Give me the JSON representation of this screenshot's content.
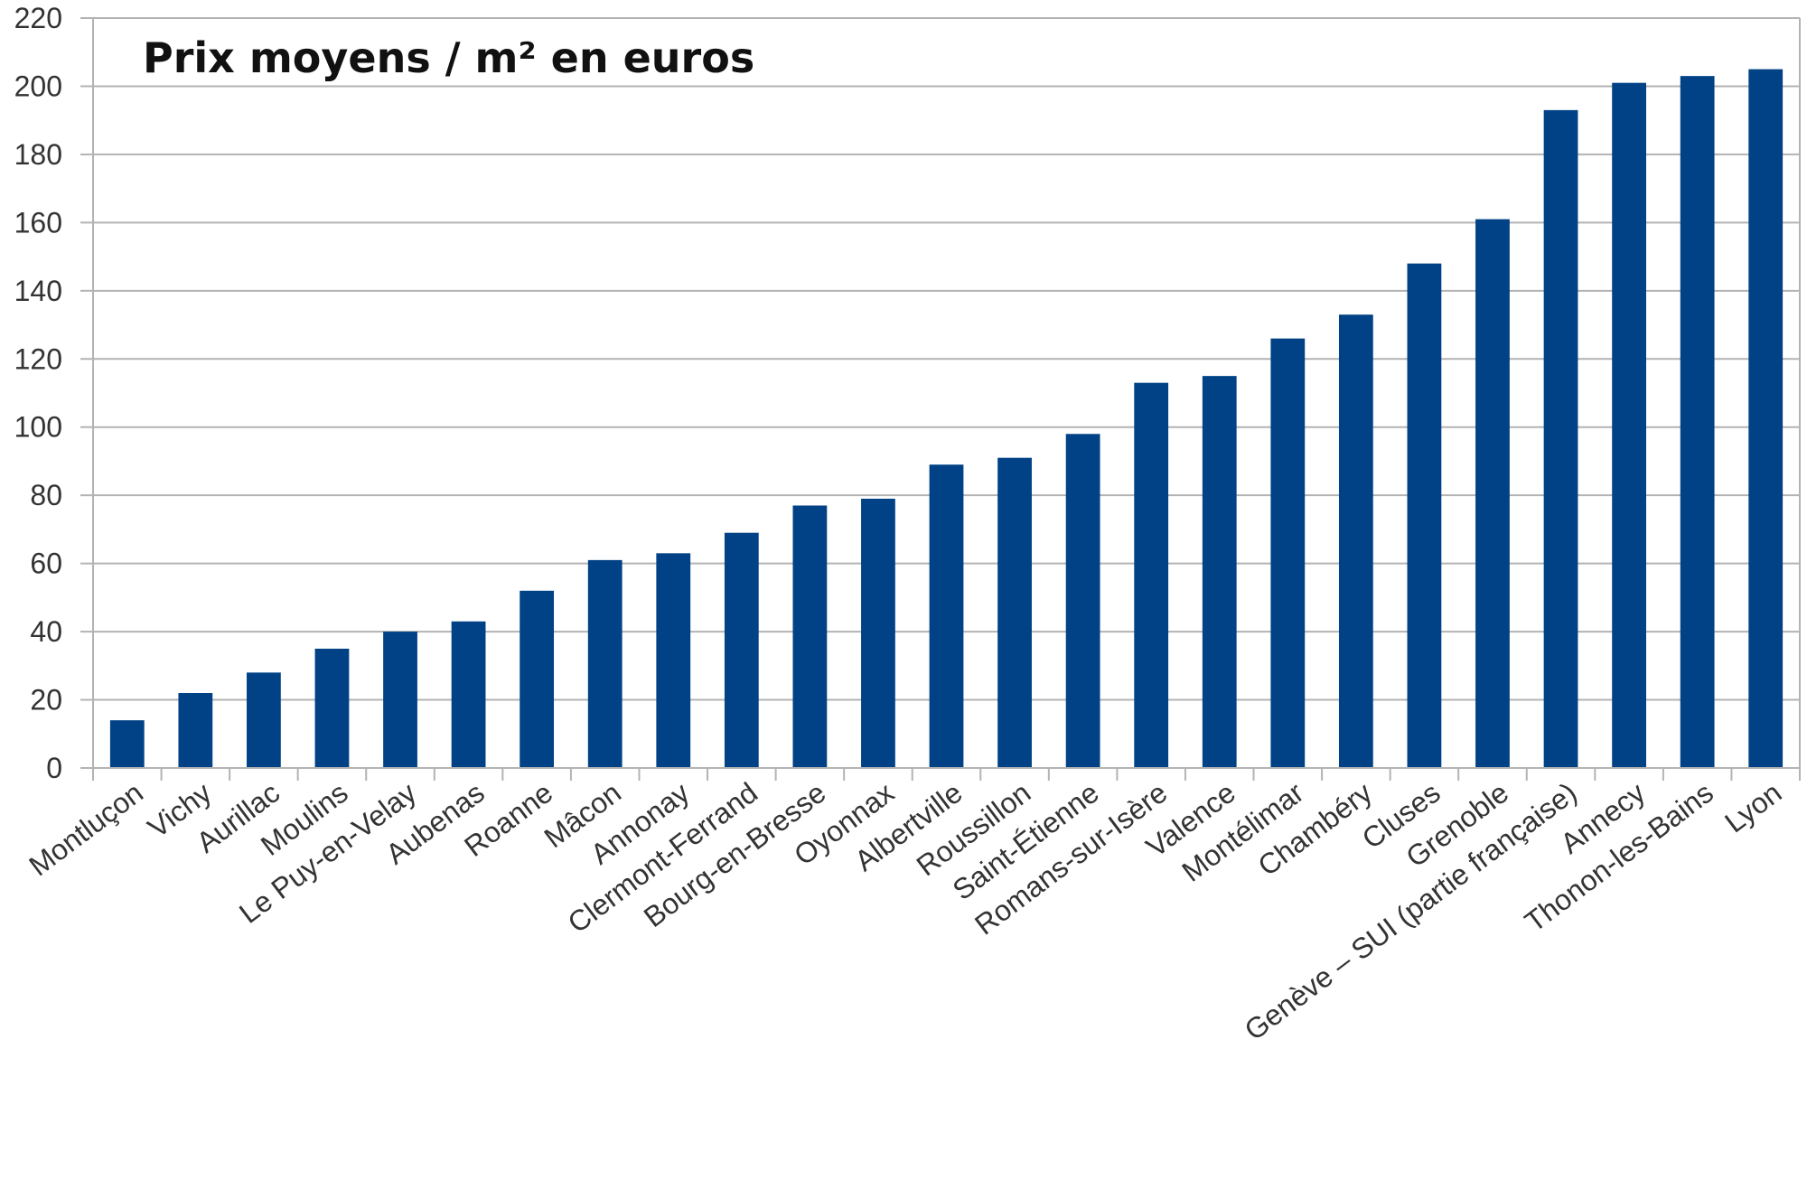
{
  "chart_data": {
    "type": "bar",
    "title": "Prix moyens / m² en euros",
    "xlabel": "",
    "ylabel": "",
    "ylim": [
      0,
      220
    ],
    "yticks": [
      0,
      20,
      40,
      60,
      80,
      100,
      120,
      140,
      160,
      180,
      200,
      220
    ],
    "grid": true,
    "legend": "none",
    "bar_color": "#004285",
    "categories": [
      "Montluçon",
      "Vichy",
      "Aurillac",
      "Moulins",
      "Le Puy-en-Velay",
      "Aubenas",
      "Roanne",
      "Mâcon",
      "Annonay",
      "Clermont-Ferrand",
      "Bourg-en-Bresse",
      "Oyonnax",
      "Albertville",
      "Roussillon",
      "Saint-Étienne",
      "Romans-sur-Isère",
      "Valence",
      "Montélimar",
      "Chambéry",
      "Cluses",
      "Grenoble",
      "Genève – SUI (partie française)",
      "Annecy",
      "Thonon-les-Bains",
      "Lyon"
    ],
    "values": [
      14,
      22,
      28,
      35,
      40,
      43,
      52,
      61,
      63,
      69,
      77,
      79,
      89,
      91,
      98,
      113,
      115,
      126,
      133,
      148,
      161,
      193,
      201,
      203,
      205
    ]
  }
}
